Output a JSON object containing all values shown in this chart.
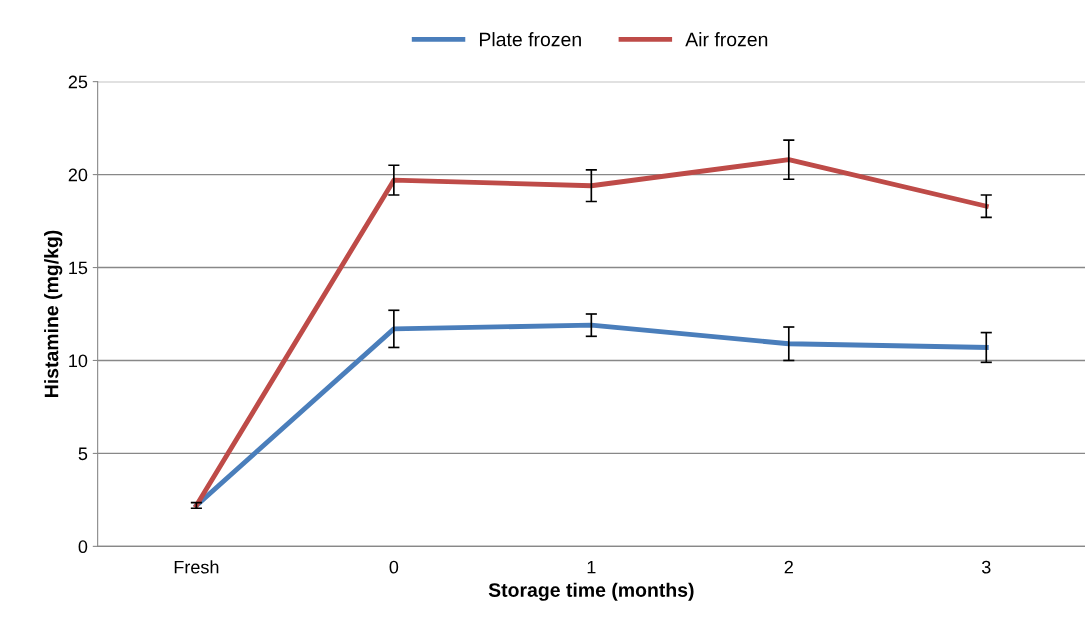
{
  "chart_data": {
    "type": "line",
    "xlabel": "Storage time (months)",
    "ylabel": "Histamine (mg/kg)",
    "categories": [
      "Fresh",
      "0",
      "1",
      "2",
      "3"
    ],
    "series": [
      {
        "name": "Plate frozen",
        "color": "#4a7ebb",
        "values": [
          2.2,
          11.7,
          11.9,
          10.9,
          10.7
        ],
        "errors": [
          0.15,
          1.0,
          0.6,
          0.9,
          0.8
        ]
      },
      {
        "name": "Air frozen",
        "color": "#be4b48",
        "values": [
          2.2,
          19.7,
          19.4,
          20.8,
          18.3
        ],
        "errors": [
          null,
          0.8,
          0.85,
          1.05,
          0.6
        ]
      }
    ],
    "ylim": [
      0,
      25
    ],
    "yticks": [
      0,
      5,
      10,
      15,
      20,
      25
    ],
    "grid": "y",
    "legend": "top",
    "marker": "none",
    "line_style": "solid"
  }
}
